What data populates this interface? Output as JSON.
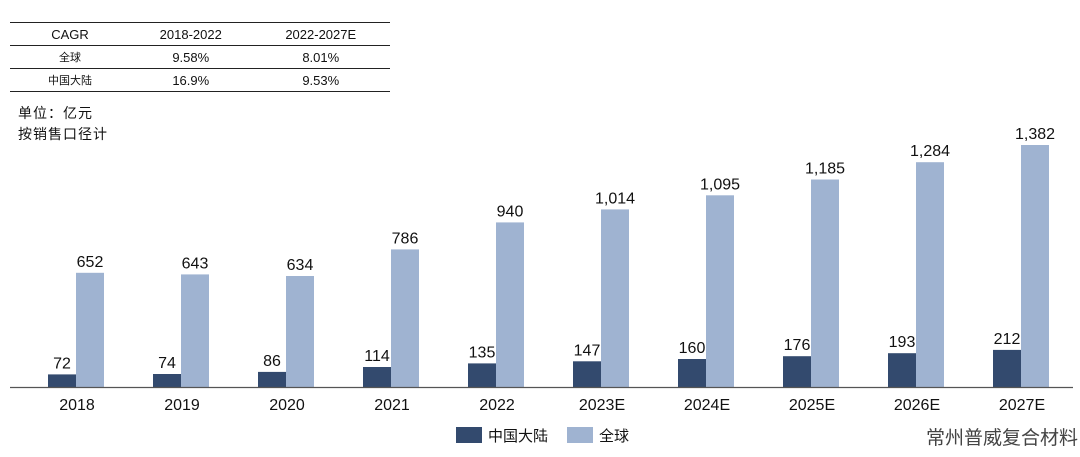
{
  "cagr_table": {
    "headers": [
      "CAGR",
      "2018-2022",
      "2022-2027E"
    ],
    "rows": [
      [
        "全球",
        "9.58%",
        "8.01%"
      ],
      [
        "中国大陆",
        "16.9%",
        "9.53%"
      ]
    ]
  },
  "notes": {
    "unit": "单位：亿元",
    "basis": "按销售口径计"
  },
  "watermark": "常州普威复合材料",
  "colors": {
    "china": "#334a6e",
    "global": "#9fb3d1",
    "axis": "#555555"
  },
  "chart_data": {
    "type": "bar",
    "categories": [
      "2018",
      "2019",
      "2020",
      "2021",
      "2022",
      "2023E",
      "2024E",
      "2025E",
      "2026E",
      "2027E"
    ],
    "series": [
      {
        "name": "中国大陆",
        "values": [
          72,
          74,
          86,
          114,
          135,
          147,
          160,
          176,
          193,
          212
        ],
        "labels": [
          "72",
          "74",
          "86",
          "114",
          "135",
          "147",
          "160",
          "176",
          "193",
          "212"
        ]
      },
      {
        "name": "全球",
        "values": [
          652,
          643,
          634,
          786,
          940,
          1014,
          1095,
          1185,
          1284,
          1382
        ],
        "labels": [
          "652",
          "643",
          "634",
          "786",
          "940",
          "1,014",
          "1,095",
          "1,185",
          "1,284",
          "1,382"
        ]
      }
    ],
    "ylim": [
      0,
      1382
    ],
    "legend": "bottom-center"
  }
}
